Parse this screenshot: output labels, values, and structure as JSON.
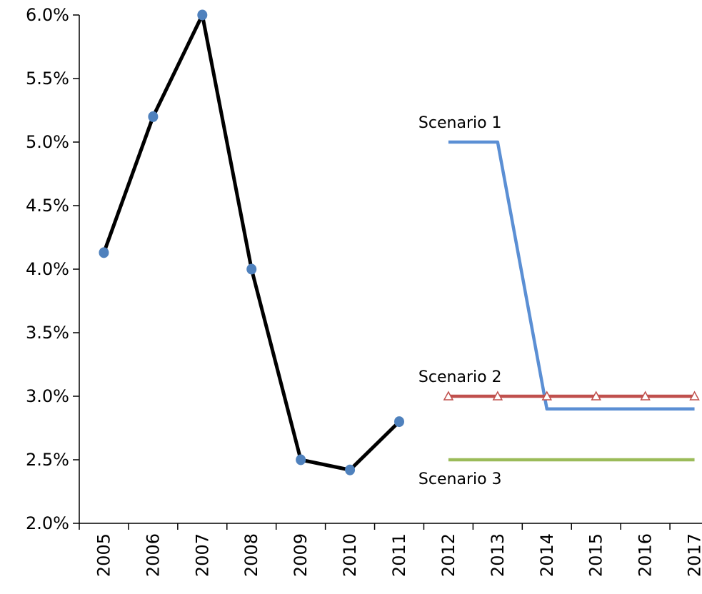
{
  "chart_data": {
    "type": "line",
    "categories": [
      "2005",
      "2006",
      "2007",
      "2008",
      "2009",
      "2010",
      "2011",
      "2012",
      "2013",
      "2014",
      "2015",
      "2016",
      "2017"
    ],
    "ylim": [
      0.02,
      0.06
    ],
    "yticks": [
      0.02,
      0.025,
      0.03,
      0.035,
      0.04,
      0.045,
      0.05,
      0.055,
      0.06
    ],
    "ytick_labels": [
      "2.0%",
      "2.5%",
      "3.0%",
      "3.5%",
      "4.0%",
      "4.5%",
      "5.0%",
      "5.5%",
      "6.0%"
    ],
    "grid": false,
    "legend": "none",
    "series": [
      {
        "color": "#000000",
        "marker": "circle",
        "marker_color": "#4F81BD",
        "values": [
          0.0413,
          0.052,
          0.06,
          0.04,
          0.025,
          0.0242,
          0.028,
          null,
          null,
          null,
          null,
          null,
          null
        ]
      },
      {
        "name": "Scenario 1",
        "color": "#5B8FD4",
        "marker": "none",
        "values": [
          null,
          null,
          null,
          null,
          null,
          null,
          null,
          0.05,
          0.05,
          0.029,
          0.029,
          0.029,
          0.029
        ]
      },
      {
        "name": "Scenario 2",
        "color": "#C0504D",
        "marker": "triangle",
        "values": [
          null,
          null,
          null,
          null,
          null,
          null,
          null,
          0.03,
          0.03,
          0.03,
          0.03,
          0.03,
          0.03
        ]
      },
      {
        "name": "Scenario 3",
        "color": "#9BBB59",
        "marker": "none",
        "values": [
          null,
          null,
          null,
          null,
          null,
          null,
          null,
          0.025,
          0.025,
          0.025,
          0.025,
          0.025,
          0.025
        ]
      }
    ]
  }
}
